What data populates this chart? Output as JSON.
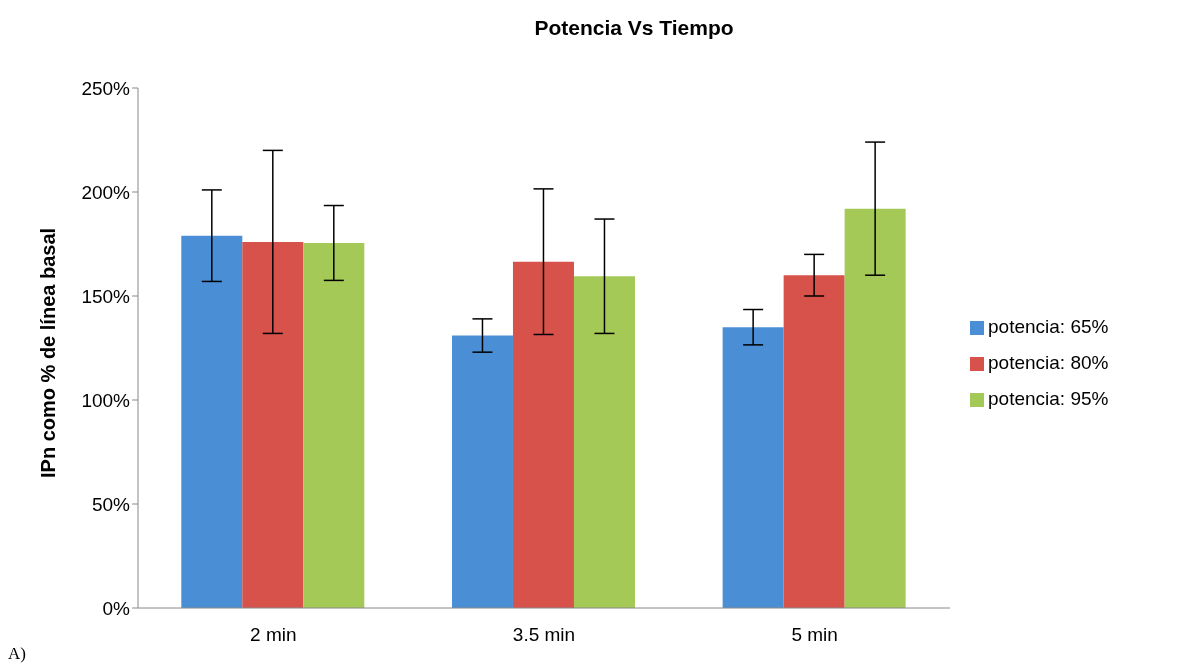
{
  "chart_data": {
    "type": "bar",
    "title": "Potencia Vs Tiempo",
    "ylabel": "IPn como % de línea basal",
    "categories": [
      "2 min",
      "3.5 min",
      "5 min"
    ],
    "series": [
      {
        "name": "potencia: 65%",
        "color": "#4a8fd6",
        "values": [
          179,
          131,
          135
        ],
        "errors": [
          22,
          8,
          8.5
        ]
      },
      {
        "name": "potencia: 80%",
        "color": "#d7524a",
        "values": [
          176,
          166.5,
          160
        ],
        "errors": [
          44,
          35,
          10
        ]
      },
      {
        "name": "potencia: 95%",
        "color": "#a5c957",
        "values": [
          175.5,
          159.5,
          192
        ],
        "errors": [
          18,
          27.5,
          32
        ]
      }
    ],
    "ylim": [
      0,
      250
    ],
    "yticks": [
      {
        "value": 0,
        "label": "0%"
      },
      {
        "value": 50,
        "label": "50%"
      },
      {
        "value": 100,
        "label": "100%"
      },
      {
        "value": 150,
        "label": "150%"
      },
      {
        "value": 200,
        "label": "200%"
      },
      {
        "value": 250,
        "label": "250%"
      }
    ],
    "grid": false,
    "legend": "right",
    "annotations": [
      "A)"
    ]
  }
}
